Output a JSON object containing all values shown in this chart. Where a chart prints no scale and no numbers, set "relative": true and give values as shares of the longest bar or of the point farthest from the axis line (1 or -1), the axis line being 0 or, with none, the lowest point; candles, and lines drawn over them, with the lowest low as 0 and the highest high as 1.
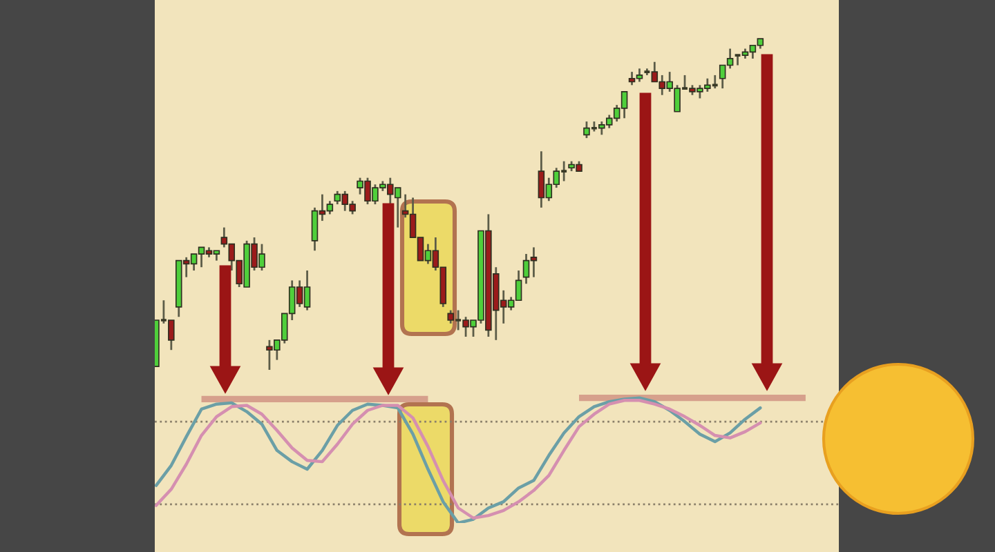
{
  "chart_data": [
    {
      "type": "candlestick",
      "relative": true,
      "categories": [
        null,
        null,
        null,
        null,
        null,
        null,
        null,
        null,
        null,
        null,
        null,
        null,
        null,
        null,
        null,
        null,
        null,
        null,
        null,
        null,
        null,
        null,
        null,
        null,
        null,
        null,
        null,
        null,
        null,
        null,
        null,
        null,
        null,
        null,
        null,
        null,
        null,
        null,
        null,
        null,
        null,
        null,
        null,
        null,
        null,
        null,
        null,
        null,
        null,
        null,
        null,
        null,
        null,
        null,
        null,
        null,
        null,
        null,
        null,
        null,
        null,
        null,
        null,
        null,
        null,
        null,
        null,
        null,
        null,
        null,
        null,
        null,
        null,
        null,
        null,
        null,
        null,
        null,
        null,
        null,
        null
      ],
      "ohlc": [
        [
          0.01,
          0.15,
          0.01,
          0.15
        ],
        [
          0.15,
          0.21,
          0.14,
          0.15
        ],
        [
          0.15,
          0.15,
          0.06,
          0.09
        ],
        [
          0.19,
          0.33,
          0.16,
          0.33
        ],
        [
          0.33,
          0.34,
          0.28,
          0.32
        ],
        [
          0.32,
          0.35,
          0.3,
          0.35
        ],
        [
          0.35,
          0.37,
          0.31,
          0.37
        ],
        [
          0.36,
          0.37,
          0.34,
          0.35
        ],
        [
          0.35,
          0.36,
          0.33,
          0.36
        ],
        [
          0.4,
          0.43,
          0.37,
          0.38
        ],
        [
          0.38,
          0.38,
          0.3,
          0.33
        ],
        [
          0.33,
          0.33,
          0.25,
          0.26
        ],
        [
          0.25,
          0.39,
          0.25,
          0.38
        ],
        [
          0.38,
          0.4,
          0.3,
          0.31
        ],
        [
          0.31,
          0.38,
          0.3,
          0.35
        ],
        [
          0.07,
          0.09,
          0.0,
          0.06
        ],
        [
          0.06,
          0.09,
          0.03,
          0.09
        ],
        [
          0.09,
          0.17,
          0.08,
          0.17
        ],
        [
          0.17,
          0.27,
          0.15,
          0.25
        ],
        [
          0.25,
          0.27,
          0.19,
          0.2
        ],
        [
          0.19,
          0.3,
          0.18,
          0.25
        ],
        [
          0.39,
          0.49,
          0.36,
          0.48
        ],
        [
          0.48,
          0.53,
          0.45,
          0.47
        ],
        [
          0.48,
          0.51,
          0.47,
          0.5
        ],
        [
          0.51,
          0.54,
          0.5,
          0.53
        ],
        [
          0.53,
          0.54,
          0.48,
          0.5
        ],
        [
          0.5,
          0.51,
          0.47,
          0.48
        ],
        [
          0.55,
          0.58,
          0.53,
          0.57
        ],
        [
          0.57,
          0.58,
          0.5,
          0.51
        ],
        [
          0.51,
          0.56,
          0.5,
          0.55
        ],
        [
          0.55,
          0.57,
          0.54,
          0.56
        ],
        [
          0.56,
          0.58,
          0.5,
          0.53
        ],
        [
          0.52,
          0.55,
          0.43,
          0.55
        ],
        [
          0.48,
          0.53,
          0.46,
          0.47
        ],
        [
          0.47,
          0.52,
          0.4,
          0.4
        ],
        [
          0.4,
          0.4,
          0.33,
          0.33
        ],
        [
          0.33,
          0.38,
          0.32,
          0.36
        ],
        [
          0.36,
          0.4,
          0.3,
          0.31
        ],
        [
          0.31,
          0.31,
          0.19,
          0.2
        ],
        [
          0.17,
          0.18,
          0.14,
          0.15
        ],
        [
          0.15,
          0.18,
          0.12,
          0.15
        ],
        [
          0.15,
          0.16,
          0.1,
          0.13
        ],
        [
          0.13,
          0.15,
          0.1,
          0.15
        ],
        [
          0.15,
          0.42,
          0.14,
          0.42
        ],
        [
          0.42,
          0.47,
          0.1,
          0.12
        ],
        [
          0.29,
          0.31,
          0.09,
          0.18
        ],
        [
          0.21,
          0.24,
          0.14,
          0.19
        ],
        [
          0.19,
          0.22,
          0.18,
          0.21
        ],
        [
          0.21,
          0.3,
          0.21,
          0.27
        ],
        [
          0.28,
          0.35,
          0.26,
          0.33
        ],
        [
          0.34,
          0.37,
          0.28,
          0.33
        ],
        [
          0.6,
          0.66,
          0.49,
          0.52
        ],
        [
          0.52,
          0.58,
          0.51,
          0.56
        ],
        [
          0.56,
          0.61,
          0.55,
          0.6
        ],
        [
          0.6,
          0.63,
          0.57,
          0.6
        ],
        [
          0.61,
          0.63,
          0.6,
          0.62
        ],
        [
          0.62,
          0.63,
          0.6,
          0.6
        ],
        [
          0.71,
          0.75,
          0.7,
          0.73
        ],
        [
          0.73,
          0.75,
          0.72,
          0.73
        ],
        [
          0.73,
          0.75,
          0.71,
          0.74
        ],
        [
          0.74,
          0.77,
          0.73,
          0.76
        ],
        [
          0.76,
          0.8,
          0.75,
          0.79
        ],
        [
          0.79,
          0.84,
          0.76,
          0.84
        ],
        [
          0.88,
          0.9,
          0.86,
          0.87
        ],
        [
          0.88,
          0.91,
          0.87,
          0.89
        ],
        [
          0.9,
          0.91,
          0.89,
          0.9
        ],
        [
          0.9,
          0.93,
          0.87,
          0.87
        ],
        [
          0.87,
          0.89,
          0.83,
          0.85
        ],
        [
          0.85,
          0.9,
          0.84,
          0.87
        ],
        [
          0.78,
          0.86,
          0.78,
          0.85
        ],
        [
          0.85,
          0.89,
          0.85,
          0.85
        ],
        [
          0.85,
          0.86,
          0.83,
          0.84
        ],
        [
          0.84,
          0.86,
          0.82,
          0.85
        ],
        [
          0.85,
          0.88,
          0.84,
          0.86
        ],
        [
          0.86,
          0.89,
          0.85,
          0.86
        ],
        [
          0.88,
          0.92,
          0.85,
          0.92
        ],
        [
          0.92,
          0.97,
          0.91,
          0.94
        ],
        [
          0.95,
          0.95,
          0.92,
          0.95
        ],
        [
          0.95,
          0.97,
          0.94,
          0.96
        ],
        [
          0.96,
          0.98,
          0.94,
          0.98
        ],
        [
          0.98,
          1.0,
          0.97,
          1.0
        ]
      ],
      "colors": [
        "#4fcf3b",
        "#3a3a26",
        "#9b1b1b",
        "#4fcf3b",
        "#9b1b1b",
        "#4fcf3b",
        "#4fcf3b",
        "#9b1b1b",
        "#4fcf3b",
        "#9b1b1b",
        "#9b1b1b",
        "#9b1b1b",
        "#4fcf3b",
        "#9b1b1b",
        "#4fcf3b",
        "#9b1b1b",
        "#4fcf3b",
        "#4fcf3b",
        "#4fcf3b",
        "#9b1b1b",
        "#4fcf3b",
        "#4fcf3b",
        "#9b1b1b",
        "#4fcf3b",
        "#4fcf3b",
        "#9b1b1b",
        "#9b1b1b",
        "#4fcf3b",
        "#9b1b1b",
        "#4fcf3b",
        "#4fcf3b",
        "#9b1b1b",
        "#4fcf3b",
        "#9b1b1b",
        "#9b1b1b",
        "#9b1b1b",
        "#4fcf3b",
        "#9b1b1b",
        "#9b1b1b",
        "#9b1b1b",
        "#3a3a26",
        "#9b1b1b",
        "#4fcf3b",
        "#4fcf3b",
        "#9b1b1b",
        "#9b1b1b",
        "#9b1b1b",
        "#4fcf3b",
        "#4fcf3b",
        "#4fcf3b",
        "#9b1b1b",
        "#9b1b1b",
        "#4fcf3b",
        "#4fcf3b",
        "#3a3a26",
        "#4fcf3b",
        "#9b1b1b",
        "#4fcf3b",
        "#3a3a26",
        "#4fcf3b",
        "#4fcf3b",
        "#4fcf3b",
        "#4fcf3b",
        "#9b1b1b",
        "#4fcf3b",
        "#3a3a26",
        "#9b1b1b",
        "#9b1b1b",
        "#4fcf3b",
        "#4fcf3b",
        "#3a3a26",
        "#9b1b1b",
        "#4fcf3b",
        "#4fcf3b",
        "#3a3a26",
        "#4fcf3b",
        "#4fcf3b",
        "#3a3a26",
        "#4fcf3b",
        "#4fcf3b",
        "#4fcf3b"
      ]
    },
    {
      "type": "line",
      "relative": true,
      "categories": [
        null,
        null,
        null,
        null,
        null,
        null,
        null,
        null,
        null,
        null,
        null,
        null,
        null,
        null,
        null,
        null,
        null,
        null,
        null,
        null,
        null,
        null,
        null,
        null,
        null,
        null,
        null,
        null,
        null,
        null,
        null,
        null,
        null,
        null,
        null,
        null,
        null,
        null,
        null,
        null,
        null,
        null,
        null,
        null
      ],
      "series": [
        {
          "color": "#6b9fa6",
          "values": [
            0.3,
            0.46,
            0.69,
            0.91,
            0.95,
            0.96,
            0.89,
            0.79,
            0.58,
            0.49,
            0.43,
            0.58,
            0.78,
            0.9,
            0.95,
            0.94,
            0.92,
            0.71,
            0.43,
            0.17,
            0.0,
            0.03,
            0.12,
            0.17,
            0.28,
            0.34,
            0.54,
            0.72,
            0.85,
            0.93,
            0.97,
            0.99,
            1.0,
            0.97,
            0.9,
            0.81,
            0.71,
            0.65,
            0.72,
            0.83,
            0.92,
            null,
            null,
            null
          ]
        },
        {
          "color": "#d58fb0",
          "values": [
            0.14,
            0.27,
            0.47,
            0.7,
            0.85,
            0.93,
            0.94,
            0.87,
            0.74,
            0.6,
            0.5,
            0.49,
            0.63,
            0.79,
            0.9,
            0.94,
            0.94,
            0.84,
            0.61,
            0.34,
            0.12,
            0.04,
            0.06,
            0.1,
            0.17,
            0.26,
            0.38,
            0.58,
            0.77,
            0.87,
            0.95,
            0.98,
            0.98,
            0.95,
            0.91,
            0.85,
            0.78,
            0.7,
            0.68,
            0.73,
            0.8,
            null,
            null,
            null
          ]
        },
        {
          "type": "line",
          "color": "#d6a08c",
          "values": [
            null,
            null,
            null,
            0.99,
            0.99,
            0.99,
            0.99,
            0.99,
            0.99,
            0.99,
            0.99,
            0.99,
            0.99,
            0.99,
            0.99,
            0.99,
            0.99,
            0.99,
            0.99,
            null,
            null,
            null,
            null,
            null,
            null,
            null,
            null,
            null,
            null,
            null,
            null,
            null,
            null,
            null,
            null,
            null,
            null,
            null,
            null,
            null,
            null,
            null,
            null,
            null
          ]
        },
        {
          "type": "line",
          "color": "#d6a08c",
          "values": [
            null,
            null,
            null,
            null,
            null,
            null,
            null,
            null,
            null,
            null,
            null,
            null,
            null,
            null,
            null,
            null,
            null,
            null,
            null,
            null,
            null,
            null,
            null,
            null,
            null,
            null,
            null,
            null,
            1.0,
            1.0,
            1.0,
            1.0,
            1.0,
            1.0,
            1.0,
            1.0,
            1.0,
            1.0,
            1.0,
            1.0,
            1.0,
            1.0,
            1.0,
            1.0
          ]
        }
      ],
      "ref_lines": [
        {
          "axis": "y",
          "value": 0.81,
          "color": "#8a7f6a",
          "line_style": "dotted"
        },
        {
          "axis": "y",
          "value": 0.15,
          "color": "#8a7f6a",
          "line_style": "dotted"
        }
      ]
    }
  ]
}
